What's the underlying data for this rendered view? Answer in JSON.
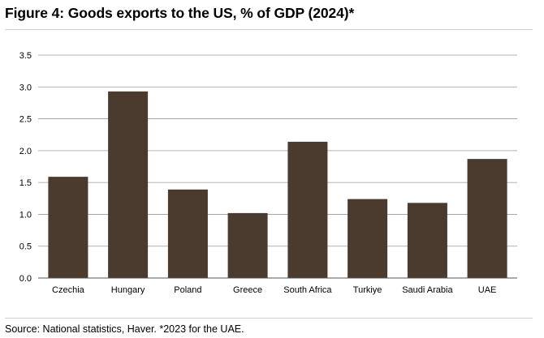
{
  "title": "Figure 4: Goods exports to the US, % of GDP (2024)*",
  "source": "Source: National statistics, Haver. *2023 for the UAE.",
  "colors": {
    "bar": "#4b3b2e",
    "gridline": "#9a9a9a",
    "axis": "#555555",
    "rule": "#cfcfcf"
  },
  "chart_data": {
    "type": "bar",
    "title": "Figure 4: Goods exports to the US, % of GDP (2024)*",
    "xlabel": "",
    "ylabel": "",
    "categories": [
      "Czechia",
      "Hungary",
      "Poland",
      "Greece",
      "South Africa",
      "Turkiye",
      "Saudi Arabia",
      "UAE"
    ],
    "values": [
      1.59,
      2.93,
      1.39,
      1.02,
      2.14,
      1.24,
      1.18,
      1.87
    ],
    "ylim": [
      0,
      3.5
    ],
    "yticks": [
      "0.0",
      "0.5",
      "1.0",
      "1.5",
      "2.0",
      "2.5",
      "3.0",
      "3.5"
    ],
    "grid": true,
    "legend": "none"
  }
}
